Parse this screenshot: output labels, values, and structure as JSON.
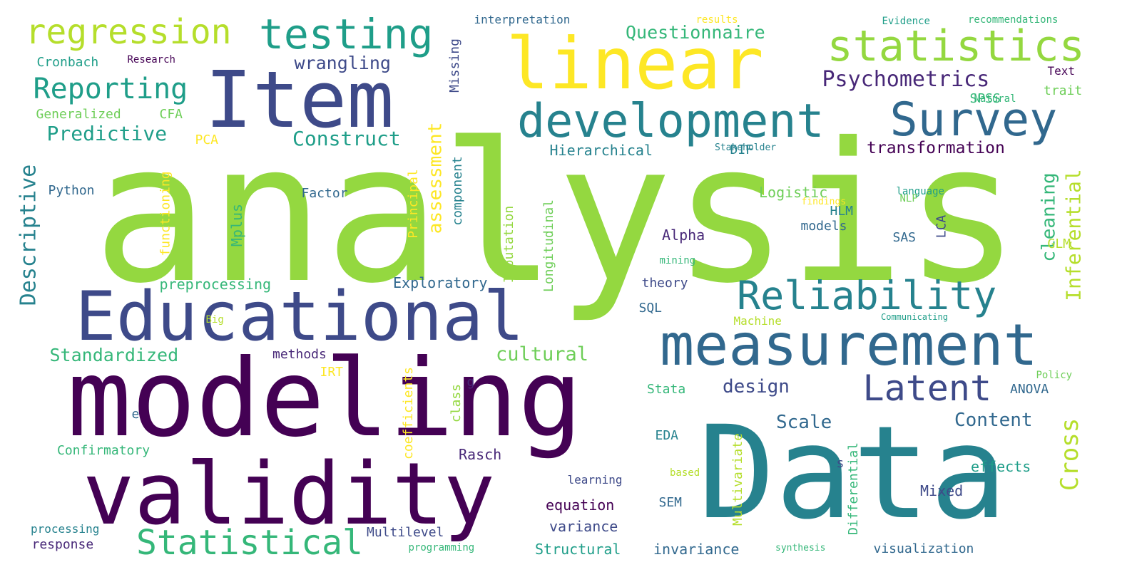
{
  "palette": {
    "c1": "#440154",
    "c2": "#482878",
    "c3": "#3e4a89",
    "c4": "#31688e",
    "c5": "#26828e",
    "c6": "#1f9e89",
    "c7": "#35b779",
    "c8": "#6ece58",
    "c9": "#94d840",
    "c10": "#b5de2b",
    "c11": "#fde725"
  },
  "words": [
    {
      "text": "analysis",
      "color": "#94d840"
    },
    {
      "text": "Data",
      "color": "#26828e"
    },
    {
      "text": "modeling",
      "color": "#440154"
    },
    {
      "text": "validity",
      "color": "#440154"
    },
    {
      "text": "Item",
      "color": "#3e4a89"
    },
    {
      "text": "linear",
      "color": "#fde725"
    },
    {
      "text": "Educational",
      "color": "#3e4a89"
    },
    {
      "text": "measurement",
      "color": "#31688e"
    },
    {
      "text": "development",
      "color": "#26828e"
    },
    {
      "text": "Survey",
      "color": "#31688e"
    },
    {
      "text": "statistics",
      "color": "#94d840"
    },
    {
      "text": "testing",
      "color": "#1f9e89"
    },
    {
      "text": "regression",
      "color": "#b5de2b"
    },
    {
      "text": "Reliability",
      "color": "#26828e"
    },
    {
      "text": "Latent",
      "color": "#3e4a89"
    },
    {
      "text": "Statistical",
      "color": "#35b779"
    },
    {
      "text": "Reporting",
      "color": "#1f9e89"
    },
    {
      "text": "Psychometrics",
      "color": "#482878"
    },
    {
      "text": "Questionnaire",
      "color": "#35b779"
    },
    {
      "text": "Construct",
      "color": "#1f9e89"
    },
    {
      "text": "Predictive",
      "color": "#1f9e89"
    },
    {
      "text": "wrangling",
      "color": "#3e4a89"
    },
    {
      "text": "transformation",
      "color": "#440154"
    },
    {
      "text": "Standardized",
      "color": "#35b779"
    },
    {
      "text": "cultural",
      "color": "#6ece58"
    },
    {
      "text": "design",
      "color": "#3e4a89"
    },
    {
      "text": "Content",
      "color": "#31688e"
    },
    {
      "text": "Scale",
      "color": "#31688e"
    },
    {
      "text": "Cross",
      "color": "#b5de2b"
    },
    {
      "text": "Inferential",
      "color": "#b5de2b"
    },
    {
      "text": "cleaning",
      "color": "#35b779"
    },
    {
      "text": "assessment",
      "color": "#fde725"
    },
    {
      "text": "Descriptive",
      "color": "#26828e"
    },
    {
      "text": "Exploratory",
      "color": "#31688e"
    },
    {
      "text": "preprocessing",
      "color": "#35b779"
    },
    {
      "text": "Hierarchical",
      "color": "#26828e"
    },
    {
      "text": "Logistic",
      "color": "#6ece58"
    },
    {
      "text": "Alpha",
      "color": "#482878"
    },
    {
      "text": "Confirmatory",
      "color": "#35b779"
    },
    {
      "text": "Rasch",
      "color": "#482878"
    },
    {
      "text": "Multilevel",
      "color": "#3e4a89"
    },
    {
      "text": "Structural",
      "color": "#1f9e89"
    },
    {
      "text": "invariance",
      "color": "#31688e"
    },
    {
      "text": "visualization",
      "color": "#31688e"
    },
    {
      "text": "equation",
      "color": "#440154"
    },
    {
      "text": "variance",
      "color": "#3e4a89"
    },
    {
      "text": "effects",
      "color": "#1f9e89"
    },
    {
      "text": "Mixed",
      "color": "#3e4a89"
    },
    {
      "text": "response",
      "color": "#482878"
    },
    {
      "text": "Generalized",
      "color": "#6ece58"
    },
    {
      "text": "CFA",
      "color": "#6ece58"
    },
    {
      "text": "PCA",
      "color": "#fde725"
    },
    {
      "text": "DIF",
      "color": "#26828e"
    },
    {
      "text": "SPSS",
      "color": "#35b779"
    },
    {
      "text": "trait",
      "color": "#6ece58"
    },
    {
      "text": "Text",
      "color": "#440154"
    },
    {
      "text": "Natural",
      "color": "#35b779"
    },
    {
      "text": "Cronbach",
      "color": "#1f9e89"
    },
    {
      "text": "Research",
      "color": "#440154"
    },
    {
      "text": "Python",
      "color": "#31688e"
    },
    {
      "text": "Factor",
      "color": "#31688e"
    },
    {
      "text": "methods",
      "color": "#482878"
    },
    {
      "text": "models",
      "color": "#31688e"
    },
    {
      "text": "HLM",
      "color": "#26828e"
    },
    {
      "text": "SAS",
      "color": "#31688e"
    },
    {
      "text": "GLM",
      "color": "#b5de2b"
    },
    {
      "text": "theory",
      "color": "#3e4a89"
    },
    {
      "text": "SQL",
      "color": "#31688e"
    },
    {
      "text": "Stata",
      "color": "#35b779"
    },
    {
      "text": "ANOVA",
      "color": "#31688e"
    },
    {
      "text": "EDA",
      "color": "#26828e"
    },
    {
      "text": "SEM",
      "color": "#31688e"
    },
    {
      "text": "Mplus",
      "color": "#35b779"
    },
    {
      "text": "functioning",
      "color": "#fde725"
    },
    {
      "text": "Principal",
      "color": "#fde725"
    },
    {
      "text": "component",
      "color": "#26828e"
    },
    {
      "text": "Imputation",
      "color": "#94d840"
    },
    {
      "text": "Longitudinal",
      "color": "#6ece58"
    },
    {
      "text": "Missing",
      "color": "#3e4a89"
    },
    {
      "text": "coefficients",
      "color": "#fde725"
    },
    {
      "text": "class",
      "color": "#94d840"
    },
    {
      "text": "Multivariate",
      "color": "#b5de2b"
    },
    {
      "text": "Differential",
      "color": "#35b779"
    },
    {
      "text": "LCA",
      "color": "#3e4a89"
    },
    {
      "text": "IRT",
      "color": "#fde725"
    },
    {
      "text": "g",
      "color": "#482878"
    },
    {
      "text": "e",
      "color": "#31688e"
    },
    {
      "text": "s",
      "color": "#3e4a89"
    },
    {
      "text": "interpretation",
      "color": "#31688e"
    },
    {
      "text": "results",
      "color": "#fde725"
    },
    {
      "text": "Evidence",
      "color": "#1f9e89"
    },
    {
      "text": "recommendations",
      "color": "#35b779"
    },
    {
      "text": "Stakeholder",
      "color": "#26828e"
    },
    {
      "text": "NLP",
      "color": "#6ece58"
    },
    {
      "text": "language",
      "color": "#1f9e89"
    },
    {
      "text": "findings",
      "color": "#fde725"
    },
    {
      "text": "mining",
      "color": "#35b779"
    },
    {
      "text": "Machine",
      "color": "#b5de2b"
    },
    {
      "text": "Communicating",
      "color": "#1f9e89"
    },
    {
      "text": "Big",
      "color": "#b5de2b"
    },
    {
      "text": "Policy",
      "color": "#6ece58"
    },
    {
      "text": "based",
      "color": "#b5de2b"
    },
    {
      "text": "learning",
      "color": "#3e4a89"
    },
    {
      "text": "processing",
      "color": "#26828e"
    },
    {
      "text": "programming",
      "color": "#35b779"
    },
    {
      "text": "synthesis",
      "color": "#35b779"
    }
  ]
}
